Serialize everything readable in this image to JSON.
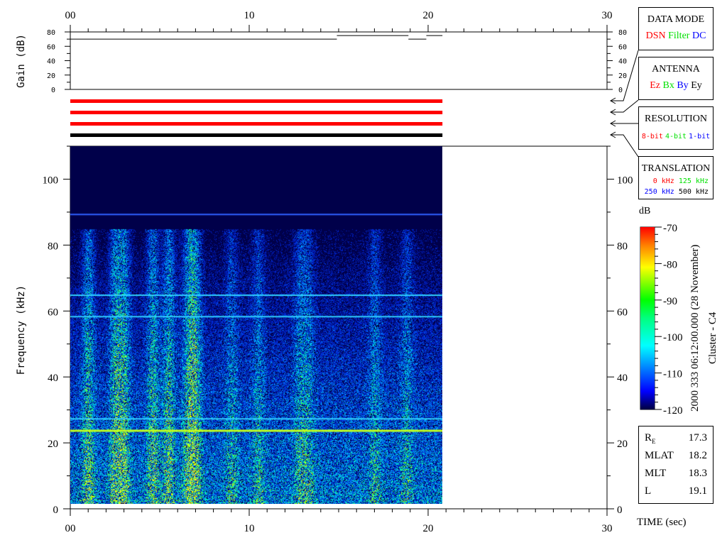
{
  "chart_data": {
    "type": "heatmap",
    "subtype": "spectrogram",
    "x_axis": {
      "label": "TIME (sec)",
      "range": [
        0,
        30
      ],
      "ticks": [
        "00",
        "10",
        "20",
        "30"
      ],
      "minor_step": 1
    },
    "gain_panel": {
      "ylabel": "Gain (dB)",
      "ylim": [
        0,
        80
      ],
      "ticks": [
        "0",
        "20",
        "40",
        "60",
        "80"
      ],
      "series": [
        {
          "x0": 0,
          "x1": 14.9,
          "y": 70
        },
        {
          "x0": 14.9,
          "x1": 18.9,
          "y": 75
        },
        {
          "x0": 18.9,
          "x1": 19.9,
          "y": 70
        },
        {
          "x0": 19.9,
          "x1": 20.8,
          "y": 75
        }
      ]
    },
    "status_bars": [
      {
        "indicator": "data-mode",
        "color": "#ff0000",
        "x0": 0,
        "x1": 20.8
      },
      {
        "indicator": "antenna",
        "color": "#ff0000",
        "x0": 0,
        "x1": 20.8
      },
      {
        "indicator": "resolution",
        "color": "#ff0000",
        "x0": 0,
        "x1": 20.8
      },
      {
        "indicator": "translation",
        "color": "#000000",
        "x0": 0,
        "x1": 20.8
      }
    ],
    "spectrogram": {
      "ylabel": "Frequency (kHz)",
      "ylim": [
        0,
        110
      ],
      "ticks": [
        "0",
        "20",
        "40",
        "60",
        "80",
        "100"
      ],
      "data_x_range": [
        0,
        20.8
      ],
      "data_y_range": [
        1.5,
        110
      ],
      "background_color": "#00004a",
      "emission_lines_khz": [
        24,
        27.5,
        58.5,
        65,
        89.5
      ]
    },
    "colorbar": {
      "unit": "dB",
      "range": [
        -120,
        -70
      ],
      "ticks": [
        "-70",
        "-80",
        "-90",
        "-100",
        "-110",
        "-120"
      ],
      "colors": [
        "#000040",
        "#0000ff",
        "#00ffff",
        "#00ff00",
        "#ffff00",
        "#ff0000"
      ]
    }
  },
  "title_vertical": "2000 333 06:12:00.000 (28 November)",
  "spacecraft": "Cluster - C4",
  "legend": {
    "data_mode": {
      "title": "DATA MODE",
      "items": [
        {
          "label": "DSN",
          "color": "#ff0000"
        },
        {
          "label": "Filter",
          "color": "#00e000"
        },
        {
          "label": "DC",
          "color": "#0000ff"
        }
      ]
    },
    "antenna": {
      "title": "ANTENNA",
      "items": [
        {
          "label": "Ez",
          "color": "#ff0000"
        },
        {
          "label": "Bx",
          "color": "#00e000"
        },
        {
          "label": "By",
          "color": "#0000ff"
        },
        {
          "label": "Ey",
          "color": "#000000"
        }
      ]
    },
    "resolution": {
      "title": "RESOLUTION",
      "items": [
        {
          "label": "8-bit",
          "color": "#ff0000"
        },
        {
          "label": "4-bit",
          "color": "#00e000"
        },
        {
          "label": "1-bit",
          "color": "#0000ff"
        }
      ]
    },
    "translation": {
      "title": "TRANSLATION",
      "items": [
        {
          "label": "0 kHz",
          "color": "#ff0000"
        },
        {
          "label": "125 kHz",
          "color": "#00e000"
        },
        {
          "label": "250 kHz",
          "color": "#0000ff"
        },
        {
          "label": "500 kHz",
          "color": "#000000"
        }
      ]
    }
  },
  "position": [
    {
      "label": "RE",
      "value": "17.3"
    },
    {
      "label": "MLAT",
      "value": "18.2"
    },
    {
      "label": "MLT",
      "value": "18.3"
    },
    {
      "label": "L",
      "value": "19.1"
    }
  ]
}
